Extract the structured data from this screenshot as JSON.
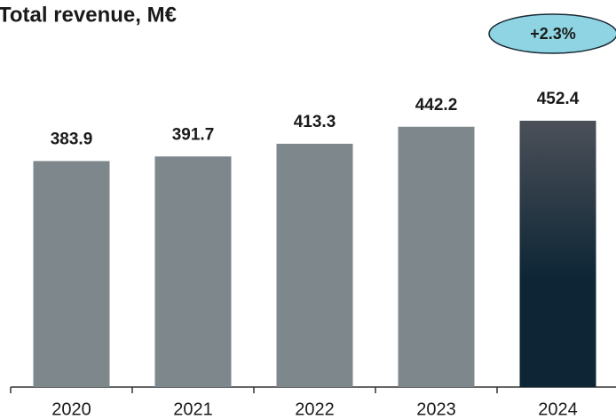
{
  "chart_data": {
    "type": "bar",
    "title": "Total revenue, M€",
    "categories": [
      "2020",
      "2021",
      "2022",
      "2023",
      "2024"
    ],
    "values": [
      383.9,
      391.7,
      413.3,
      442.2,
      452.4
    ],
    "colors": [
      "#7e878c",
      "#7e878c",
      "#7e878c",
      "#7e878c",
      "#0d2535"
    ],
    "annotation": "+2.3%"
  }
}
